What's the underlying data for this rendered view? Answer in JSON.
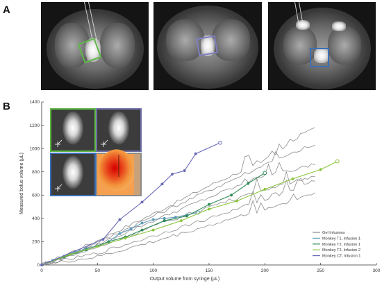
{
  "figure": {
    "panel_a_label": "A",
    "panel_b_label": "B"
  },
  "mri_panels": [
    {
      "name": "mri-monkey-t1",
      "roi_color": "#5fb946"
    },
    {
      "name": "mri-monkey-t2",
      "roi_color": "#7f7fc2"
    },
    {
      "name": "mri-monkey-ct",
      "roi_color": "#3b6fb6"
    }
  ],
  "inset_panels": [
    {
      "name": "inset-green",
      "border_color": "#5fb946"
    },
    {
      "name": "inset-purple",
      "border_color": "#6f6fa8"
    },
    {
      "name": "inset-blue",
      "border_color": "#3b6fb6"
    },
    {
      "name": "inset-heatmap",
      "border_color": "#8a8a8a"
    }
  ],
  "chart_data": {
    "type": "line",
    "xlabel": "Output volume from syringe (μL)",
    "ylabel": "Measured bolus volume (μL)",
    "xlim": [
      0,
      300
    ],
    "ylim": [
      0,
      1400
    ],
    "xticks": [
      0,
      50,
      100,
      150,
      200,
      250,
      300
    ],
    "yticks": [
      0,
      200,
      400,
      600,
      800,
      1000,
      1200,
      1400
    ],
    "grid": false,
    "legend_position": "bottom-right",
    "legend": [
      {
        "label": "Gel Infusions",
        "color": "#8c8c8c"
      },
      {
        "label": "Monkey T1, Infusion 1",
        "color": "#5e9bb8"
      },
      {
        "label": "Monkey T2, Infusion 1",
        "color": "#2e8b57"
      },
      {
        "label": "Monkey T2, Infusion 2",
        "color": "#8dc63f"
      },
      {
        "label": "Monkey CT, Infusion 1",
        "color": "#6a6ab8"
      }
    ],
    "gel_series": [
      {
        "x": [
          0,
          50,
          100,
          150,
          200,
          245
        ],
        "y": [
          0,
          210,
          440,
          680,
          900,
          1180
        ]
      },
      {
        "x": [
          0,
          50,
          100,
          150,
          200,
          245
        ],
        "y": [
          0,
          190,
          420,
          640,
          860,
          1030
        ]
      },
      {
        "x": [
          0,
          50,
          100,
          150,
          200,
          245
        ],
        "y": [
          0,
          175,
          380,
          580,
          770,
          860
        ]
      },
      {
        "x": [
          0,
          50,
          100,
          150,
          200,
          245
        ],
        "y": [
          0,
          150,
          330,
          500,
          650,
          760
        ]
      },
      {
        "x": [
          0,
          50,
          100,
          150,
          200,
          245
        ],
        "y": [
          0,
          100,
          250,
          400,
          560,
          720
        ]
      },
      {
        "x": [
          0,
          50,
          100,
          150,
          200,
          245
        ],
        "y": [
          0,
          70,
          200,
          340,
          480,
          620
        ]
      }
    ],
    "series": [
      {
        "name": "Monkey T1, Infusion 1",
        "color": "#5e9bb8",
        "x": [
          0,
          10,
          20,
          30,
          40,
          50,
          60,
          70,
          80,
          90,
          100,
          110,
          120,
          130,
          140
        ],
        "y": [
          0,
          40,
          75,
          110,
          140,
          165,
          200,
          270,
          310,
          360,
          390,
          400,
          410,
          430,
          450
        ]
      },
      {
        "name": "Monkey T2, Infusion 1",
        "color": "#2e8b57",
        "x": [
          0,
          20,
          40,
          60,
          75,
          90,
          110,
          130,
          150,
          170,
          185,
          200
        ],
        "y": [
          0,
          70,
          130,
          200,
          240,
          300,
          380,
          420,
          520,
          600,
          700,
          790
        ]
      },
      {
        "name": "Monkey T2, Infusion 2",
        "color": "#8dc63f",
        "x": [
          0,
          25,
          50,
          75,
          100,
          125,
          150,
          175,
          200,
          225,
          250,
          265
        ],
        "y": [
          0,
          90,
          160,
          230,
          300,
          380,
          480,
          550,
          650,
          740,
          820,
          890
        ]
      },
      {
        "name": "Monkey CT, Infusion 1",
        "color": "#6a6ab8",
        "x": [
          0,
          55,
          70,
          90,
          108,
          117,
          128,
          138,
          160
        ],
        "y": [
          0,
          220,
          390,
          540,
          695,
          780,
          810,
          955,
          1050
        ]
      }
    ]
  }
}
